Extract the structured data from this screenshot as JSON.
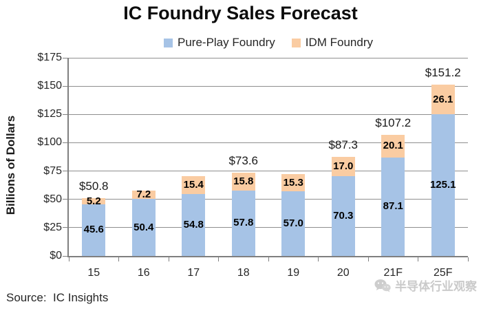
{
  "title": "IC Foundry Sales Forecast",
  "source": "Source:  IC Insights",
  "watermark": "半导体行业观察",
  "chart_data": {
    "type": "bar",
    "stacked": true,
    "title": "IC Foundry Sales Forecast",
    "categories": [
      "15",
      "16",
      "17",
      "18",
      "19",
      "20",
      "21F",
      "25F"
    ],
    "series": [
      {
        "name": "Pure-Play Foundry",
        "color": "#A6C3E6",
        "values": [
          45.6,
          50.4,
          54.8,
          57.8,
          57.0,
          70.3,
          87.1,
          125.1
        ]
      },
      {
        "name": "IDM Foundry",
        "color": "#FACCA2",
        "values": [
          5.2,
          7.2,
          15.4,
          15.8,
          15.3,
          17.0,
          20.1,
          26.1
        ]
      }
    ],
    "total_labels": [
      "$50.8",
      "",
      "",
      "$73.6",
      "",
      "$87.3",
      "$107.2",
      "$151.2"
    ],
    "xlabel": "",
    "ylabel": "Billions of Dollars",
    "ylim": [
      0,
      175
    ],
    "ytick_step": 25,
    "ytick_labels": [
      "$0",
      "$25",
      "$50",
      "$75",
      "$100",
      "$125",
      "$150",
      "$175"
    ],
    "grid": true,
    "legend_position": "top-center"
  }
}
